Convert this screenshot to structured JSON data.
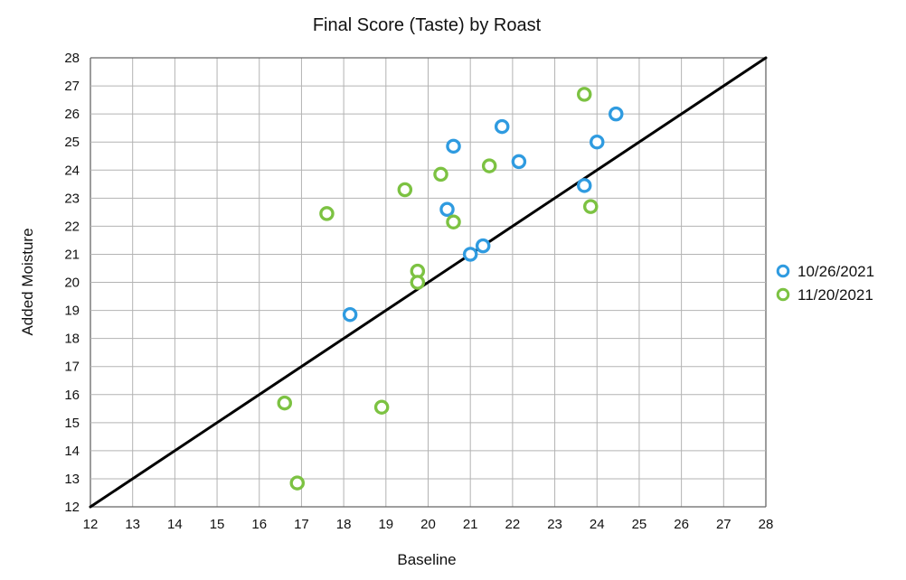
{
  "chart_data": {
    "type": "scatter",
    "title": "Final Score (Taste) by Roast",
    "xlabel": "Baseline",
    "ylabel": "Added Moisture",
    "xlim": [
      12,
      28
    ],
    "ylim": [
      12,
      28
    ],
    "xticks": [
      12,
      13,
      14,
      15,
      16,
      17,
      18,
      19,
      20,
      21,
      22,
      23,
      24,
      25,
      26,
      27,
      28
    ],
    "yticks": [
      12,
      13,
      14,
      15,
      16,
      17,
      18,
      19,
      20,
      21,
      22,
      23,
      24,
      25,
      26,
      27,
      28
    ],
    "grid": true,
    "legend_position": "right",
    "marker": "hollow-circle",
    "reference_line": {
      "type": "diagonal",
      "from": [
        12,
        12
      ],
      "to": [
        28,
        28
      ],
      "color": "#000000"
    },
    "series": [
      {
        "name": "10/26/2021",
        "color": "#2f9be0",
        "points": [
          [
            18.15,
            18.85
          ],
          [
            20.45,
            22.6
          ],
          [
            20.6,
            24.85
          ],
          [
            21.0,
            21.0
          ],
          [
            21.3,
            21.3
          ],
          [
            21.75,
            25.55
          ],
          [
            22.15,
            24.3
          ],
          [
            23.7,
            23.45
          ],
          [
            24.0,
            25.0
          ],
          [
            24.45,
            26.0
          ]
        ]
      },
      {
        "name": "11/20/2021",
        "color": "#7cc242",
        "points": [
          [
            16.6,
            15.7
          ],
          [
            16.9,
            12.85
          ],
          [
            17.6,
            22.45
          ],
          [
            18.9,
            15.55
          ],
          [
            19.45,
            23.3
          ],
          [
            19.75,
            20.4
          ],
          [
            19.75,
            20.0
          ],
          [
            20.3,
            23.85
          ],
          [
            20.6,
            22.15
          ],
          [
            21.45,
            24.15
          ],
          [
            23.7,
            26.7
          ],
          [
            23.85,
            22.7
          ]
        ]
      }
    ]
  }
}
